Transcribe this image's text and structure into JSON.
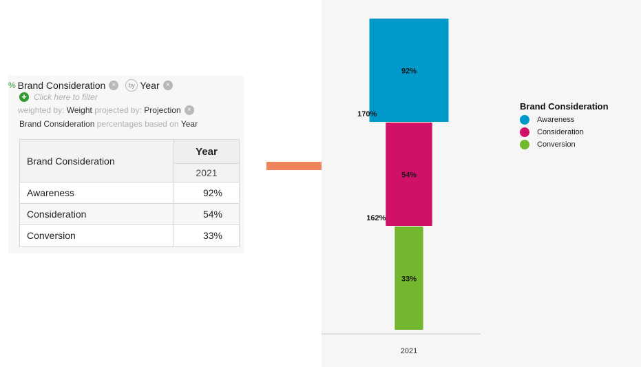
{
  "query": {
    "pct_symbol": "%",
    "variable": "Brand Consideration",
    "by_label": "by",
    "by_variable": "Year",
    "remove_glyph": "×",
    "add_glyph": "+",
    "filter_hint": "Click here to filter",
    "weighted_label": "weighted by:",
    "weighted_value": "Weight",
    "projected_label": "projected by:",
    "projected_value": "Projection",
    "pct_base_variable": "Brand Consideration",
    "pct_base_label": "percentages based on",
    "pct_base_value": "Year"
  },
  "table": {
    "row_header": "Brand Consideration",
    "column_header": "Year",
    "column_sub": "2021",
    "rows": [
      {
        "label": "Awareness",
        "value": "92%"
      },
      {
        "label": "Consideration",
        "value": "54%"
      },
      {
        "label": "Conversion",
        "value": "33%"
      }
    ]
  },
  "colors": {
    "awareness": "#0099c9",
    "consideration": "#cf1167",
    "conversion": "#72b72d",
    "arrow": "#f0835b"
  },
  "chart_data": {
    "type": "bar",
    "subtype": "funnel",
    "categories": [
      "2021"
    ],
    "series": [
      {
        "name": "Awareness",
        "values": [
          92
        ],
        "label": "92%",
        "color": "#0099c9"
      },
      {
        "name": "Consideration",
        "values": [
          54
        ],
        "label": "54%",
        "color": "#cf1167"
      },
      {
        "name": "Conversion",
        "values": [
          33
        ],
        "label": "33%",
        "color": "#72b72d"
      }
    ],
    "conversion_labels": [
      "170%",
      "162%"
    ],
    "legend_title": "Brand Consideration",
    "legend_position": "right",
    "grid": false
  }
}
